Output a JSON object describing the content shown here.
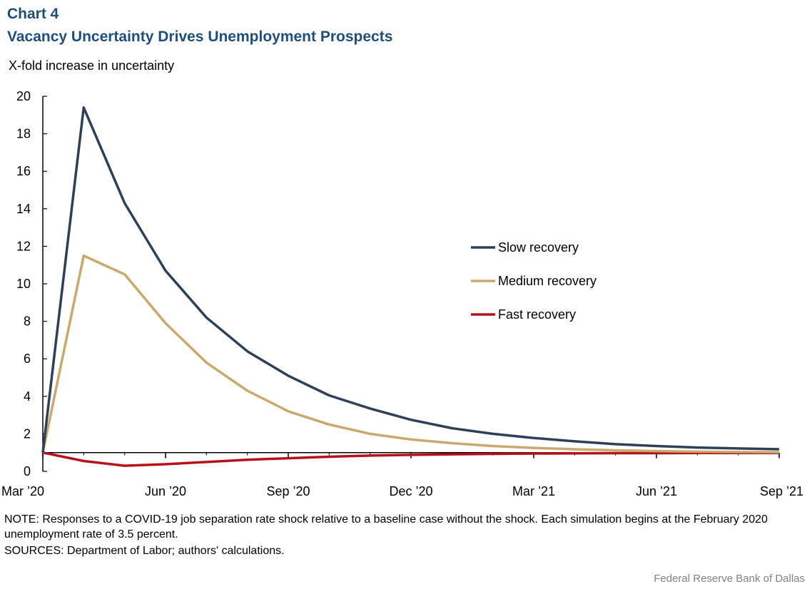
{
  "header": {
    "chart_number": "Chart 4",
    "title": "Vacancy Uncertainty Drives Unemployment Prospects"
  },
  "footer": {
    "note": "NOTE: Responses to a COVID-19 job separation rate shock relative to a baseline case without the shock. Each simulation begins at the February 2020 unemployment  rate of 3.5 percent.",
    "sources": "SOURCES: Department of Labor; authors' calculations.",
    "credit": "Federal Reserve  Bank of Dallas"
  },
  "chart_data": {
    "type": "line",
    "title": "Vacancy Uncertainty Drives Unemployment Prospects",
    "ylabel": "X-fold increase in uncertainty",
    "xlabel": "",
    "ylim": [
      0,
      20
    ],
    "yticks": [
      0,
      2,
      4,
      6,
      8,
      10,
      12,
      14,
      16,
      18,
      20
    ],
    "baseline": 1,
    "x": [
      0,
      1,
      2,
      3,
      4,
      5,
      6,
      7,
      8,
      9,
      10,
      11,
      12,
      13,
      14,
      15,
      16,
      17,
      18
    ],
    "xlim": [
      0,
      18
    ],
    "xticks": [
      {
        "pos": 0,
        "label": "Mar ’20"
      },
      {
        "pos": 3,
        "label": "Jun ’20"
      },
      {
        "pos": 6,
        "label": "Sep ’20"
      },
      {
        "pos": 9,
        "label": "Dec ’20"
      },
      {
        "pos": 12,
        "label": "Mar ’21"
      },
      {
        "pos": 15,
        "label": "Jun ’21"
      },
      {
        "pos": 18,
        "label": "Sep ’21"
      }
    ],
    "series": [
      {
        "name": "Slow recovery",
        "color": "#2e4057",
        "values": [
          1.0,
          19.4,
          14.3,
          10.7,
          8.2,
          6.4,
          5.1,
          4.05,
          3.35,
          2.75,
          2.3,
          2.0,
          1.78,
          1.6,
          1.45,
          1.35,
          1.27,
          1.22,
          1.18
        ]
      },
      {
        "name": "Medium recovery",
        "color": "#c9a96e",
        "values": [
          1.0,
          11.5,
          10.5,
          7.9,
          5.8,
          4.3,
          3.2,
          2.5,
          2.0,
          1.7,
          1.5,
          1.35,
          1.25,
          1.18,
          1.12,
          1.08,
          1.05,
          1.03,
          1.02
        ]
      },
      {
        "name": "Fast recovery",
        "color": "#b5121b",
        "values": [
          1.0,
          0.55,
          0.3,
          0.38,
          0.5,
          0.62,
          0.7,
          0.78,
          0.84,
          0.88,
          0.91,
          0.93,
          0.95,
          0.96,
          0.97,
          0.97,
          0.98,
          0.98,
          0.98
        ]
      }
    ],
    "legend": "right-center"
  }
}
